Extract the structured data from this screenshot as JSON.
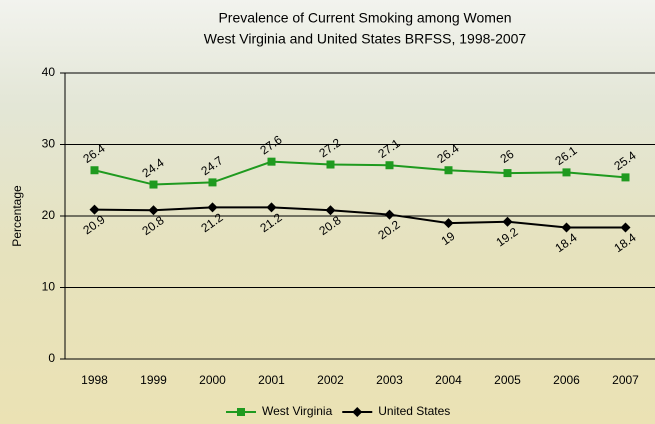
{
  "chart_data": {
    "type": "line",
    "title": "Prevalence of Current Smoking among Women",
    "subtitle": "West Virginia and United States BRFSS, 1998-2007",
    "y_label": "Percentage",
    "categories": [
      "1998",
      "1999",
      "2000",
      "2001",
      "2002",
      "2003",
      "2004",
      "2005",
      "2006",
      "2007"
    ],
    "series": [
      {
        "name": "West Virginia",
        "color": "#1f9a1f",
        "marker": "square",
        "values": [
          26.4,
          24.4,
          24.7,
          27.6,
          27.2,
          27.1,
          26.4,
          26,
          26.1,
          25.4
        ]
      },
      {
        "name": "United States",
        "color": "#000000",
        "marker": "diamond",
        "values": [
          20.9,
          20.8,
          21.2,
          21.2,
          20.8,
          20.2,
          19,
          19.2,
          18.4,
          18.4
        ]
      }
    ],
    "ylim": [
      0,
      40
    ],
    "yticks": [
      0,
      10,
      20,
      30,
      40
    ],
    "grid": true,
    "legend": "bottom"
  }
}
